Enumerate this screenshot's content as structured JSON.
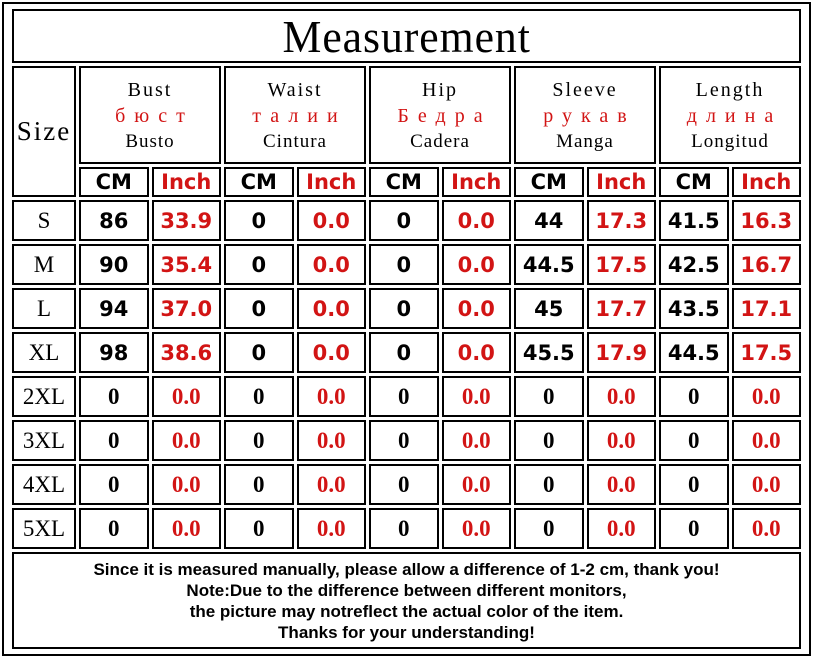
{
  "title": "Measurement",
  "colors": {
    "accent_red": "#d21414",
    "text_black": "#000000",
    "background": "#ffffff"
  },
  "table": {
    "size_label": "Size",
    "unit_cm": "CM",
    "unit_inch": "Inch",
    "columns": [
      {
        "en": "Bust",
        "ru": "бюст",
        "es": "Busto"
      },
      {
        "en": "Waist",
        "ru": "талии",
        "es": "Cintura"
      },
      {
        "en": "Hip",
        "ru": "Бедра",
        "es": "Cadera"
      },
      {
        "en": "Sleeve",
        "ru": "рукав",
        "es": "Manga"
      },
      {
        "en": "Length",
        "ru": "длина",
        "es": "Longitud"
      }
    ],
    "rows": [
      {
        "size": "S",
        "values": [
          [
            "86",
            "33.9"
          ],
          [
            "0",
            "0.0"
          ],
          [
            "0",
            "0.0"
          ],
          [
            "44",
            "17.3"
          ],
          [
            "41.5",
            "16.3"
          ]
        ]
      },
      {
        "size": "M",
        "values": [
          [
            "90",
            "35.4"
          ],
          [
            "0",
            "0.0"
          ],
          [
            "0",
            "0.0"
          ],
          [
            "44.5",
            "17.5"
          ],
          [
            "42.5",
            "16.7"
          ]
        ]
      },
      {
        "size": "L",
        "values": [
          [
            "94",
            "37.0"
          ],
          [
            "0",
            "0.0"
          ],
          [
            "0",
            "0.0"
          ],
          [
            "45",
            "17.7"
          ],
          [
            "43.5",
            "17.1"
          ]
        ]
      },
      {
        "size": "XL",
        "values": [
          [
            "98",
            "38.6"
          ],
          [
            "0",
            "0.0"
          ],
          [
            "0",
            "0.0"
          ],
          [
            "45.5",
            "17.9"
          ],
          [
            "44.5",
            "17.5"
          ]
        ]
      },
      {
        "size": "2XL",
        "values": [
          [
            "0",
            "0.0"
          ],
          [
            "0",
            "0.0"
          ],
          [
            "0",
            "0.0"
          ],
          [
            "0",
            "0.0"
          ],
          [
            "0",
            "0.0"
          ]
        ]
      },
      {
        "size": "3XL",
        "values": [
          [
            "0",
            "0.0"
          ],
          [
            "0",
            "0.0"
          ],
          [
            "0",
            "0.0"
          ],
          [
            "0",
            "0.0"
          ],
          [
            "0",
            "0.0"
          ]
        ]
      },
      {
        "size": "4XL",
        "values": [
          [
            "0",
            "0.0"
          ],
          [
            "0",
            "0.0"
          ],
          [
            "0",
            "0.0"
          ],
          [
            "0",
            "0.0"
          ],
          [
            "0",
            "0.0"
          ]
        ]
      },
      {
        "size": "5XL",
        "values": [
          [
            "0",
            "0.0"
          ],
          [
            "0",
            "0.0"
          ],
          [
            "0",
            "0.0"
          ],
          [
            "0",
            "0.0"
          ],
          [
            "0",
            "0.0"
          ]
        ]
      }
    ]
  },
  "footer": {
    "lines": [
      "Since it is measured manually, please allow a difference of 1-2 cm, thank you!",
      "Note:Due to the difference between different monitors,",
      "the picture may notreflect the actual color of the item.",
      "Thanks for your understanding!"
    ]
  }
}
